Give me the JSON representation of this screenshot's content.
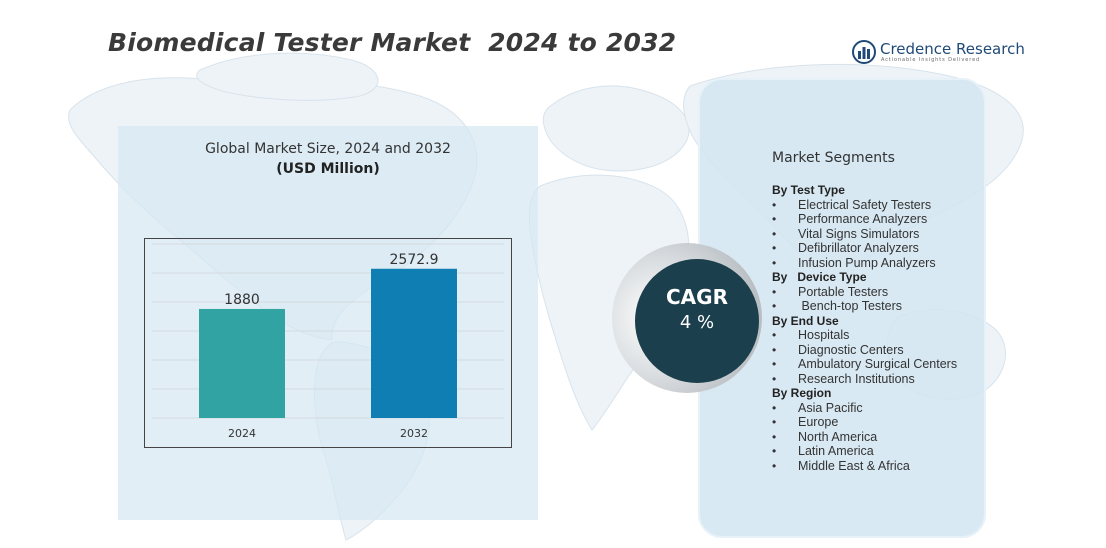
{
  "title": "Biomedical Tester Market  2024 to 2032",
  "brand": {
    "name": "Credence Research",
    "tagline": "Actionable Insights Delivered",
    "color": "#1f4a78"
  },
  "chart_panel": {
    "title": "Global Market Size, 2024 and 2032",
    "unit": "(USD Million)"
  },
  "chart_data": {
    "type": "bar",
    "categories": [
      "2024",
      "2032"
    ],
    "values": [
      1880,
      2572.9
    ],
    "value_labels": [
      "1880",
      "2572.9"
    ],
    "colors": [
      "#32a3a3",
      "#0f7fb3"
    ],
    "ylim": [
      0,
      3000
    ],
    "grid": true,
    "title": "Global Market Size, 2024 and 2032",
    "ylabel": "(USD Million)"
  },
  "cagr": {
    "label": "CAGR",
    "value": "4 %",
    "color": "#1c3f4d"
  },
  "segments": {
    "heading": "Market Segments",
    "groups": [
      {
        "title": "By Test Type",
        "items": [
          "Electrical Safety Testers",
          "Performance Analyzers",
          "Vital Signs Simulators",
          "Defibrillator Analyzers",
          "Infusion Pump Analyzers"
        ]
      },
      {
        "title": "By   Device Type",
        "items": [
          "Portable Testers",
          " Bench-top Testers"
        ]
      },
      {
        "title": "By End Use",
        "items": [
          "Hospitals",
          "Diagnostic Centers",
          "Ambulatory Surgical Centers",
          "Research Institutions"
        ]
      },
      {
        "title": "By Region",
        "items": [
          "Asia Pacific",
          "Europe",
          "North America",
          "Latin America",
          "Middle East & Africa"
        ]
      }
    ]
  }
}
